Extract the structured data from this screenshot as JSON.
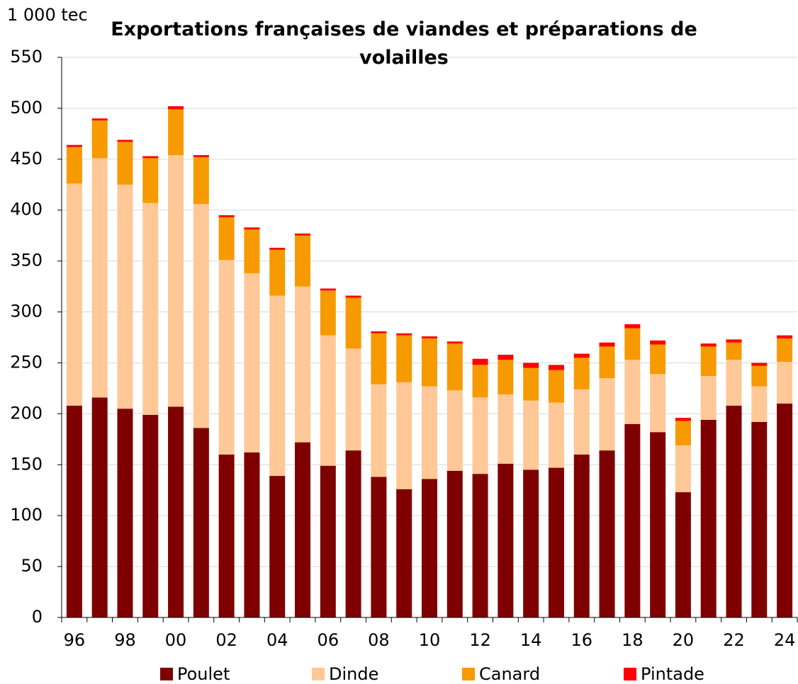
{
  "chart_data": {
    "type": "stacked_bar",
    "title": "Exportations françaises de viandes et préparations de volailles",
    "y_unit": "1 000 tec",
    "categories": [
      "96",
      null,
      "98",
      null,
      "00",
      null,
      "02",
      null,
      "04",
      null,
      "06",
      null,
      "08",
      null,
      "10",
      null,
      "12",
      null,
      "14",
      null,
      "16",
      null,
      "18",
      null,
      "20",
      null,
      "22",
      null,
      "24"
    ],
    "series": [
      {
        "name": "Poulet",
        "color": "#7f0000",
        "values": [
          208,
          216,
          205,
          199,
          207,
          186,
          160,
          162,
          139,
          172,
          149,
          164,
          138,
          126,
          136,
          144,
          141,
          151,
          145,
          147,
          160,
          164,
          190,
          182,
          123,
          194,
          208,
          192,
          210
        ]
      },
      {
        "name": "Dinde",
        "color": "#ffc896",
        "values": [
          218,
          235,
          220,
          208,
          247,
          220,
          191,
          176,
          177,
          153,
          128,
          100,
          91,
          105,
          91,
          79,
          75,
          68,
          68,
          64,
          64,
          71,
          63,
          57,
          46,
          43,
          45,
          35,
          41
        ]
      },
      {
        "name": "Canard",
        "color": "#f79a00",
        "values": [
          36,
          37,
          42,
          44,
          45,
          46,
          42,
          43,
          45,
          50,
          44,
          50,
          50,
          46,
          47,
          46,
          32,
          34,
          32,
          32,
          31,
          31,
          31,
          29,
          24,
          29,
          17,
          20,
          23
        ]
      },
      {
        "name": "Pintade",
        "color": "#ff0000",
        "values": [
          2,
          2,
          2,
          2,
          3,
          2,
          2,
          2,
          2,
          2,
          2,
          2,
          2,
          2,
          2,
          2,
          6,
          5,
          5,
          5,
          4,
          4,
          4,
          4,
          3,
          3,
          3,
          3,
          3
        ]
      }
    ],
    "ylim": [
      0,
      550
    ],
    "yticks": [
      0,
      50,
      100,
      150,
      200,
      250,
      300,
      350,
      400,
      450,
      500,
      550
    ],
    "grid": true,
    "legend": "bottom"
  }
}
